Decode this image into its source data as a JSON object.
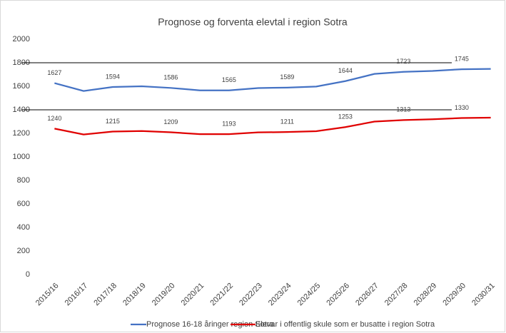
{
  "chart_data": {
    "type": "line",
    "title": "Prognose og forventa elevtal i region Sotra",
    "categories": [
      "2015/16",
      "2016/17",
      "2017/18",
      "2018/19",
      "2019/20",
      "2020/21",
      "2021/22",
      "2022/23",
      "2023/24",
      "2024/25",
      "2025/26",
      "2026/27",
      "2027/28",
      "2028/29",
      "2029/30",
      "2030/31"
    ],
    "series": [
      {
        "name": "Prognose 16-18 åringer region Sotra",
        "color": "#4472c4",
        "values": [
          1627,
          1560,
          1594,
          1600,
          1586,
          1565,
          1565,
          1585,
          1589,
          1598,
          1644,
          1705,
          1723,
          1730,
          1745,
          1748
        ],
        "value_labels": [
          "1627",
          null,
          "1594",
          null,
          "1586",
          null,
          "1565",
          null,
          "1589",
          null,
          "1644",
          null,
          "1723",
          null,
          "1745",
          null
        ]
      },
      {
        "name": "Elevar i offentlig skule som er busatte i region Sotra",
        "color": "#e00000",
        "values": [
          1240,
          1190,
          1215,
          1220,
          1209,
          1193,
          1193,
          1208,
          1211,
          1218,
          1253,
          1300,
          1313,
          1320,
          1330,
          1333
        ],
        "value_labels": [
          "1240",
          null,
          "1215",
          null,
          "1209",
          null,
          "1193",
          null,
          "1211",
          null,
          "1253",
          null,
          "1313",
          null,
          "1330",
          null
        ]
      }
    ],
    "ylim": [
      0,
      2000
    ],
    "yticks": [
      0,
      200,
      400,
      600,
      800,
      1000,
      1200,
      1400,
      1600,
      1800,
      2000
    ],
    "hlines": [
      1400,
      1800
    ],
    "grid": false,
    "legend": "bottom"
  }
}
